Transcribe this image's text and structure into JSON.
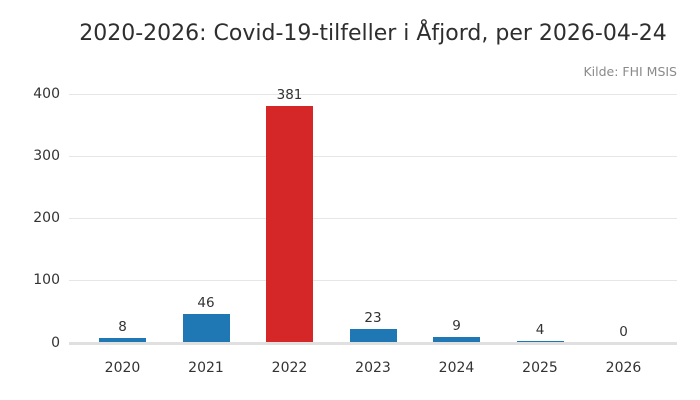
{
  "chart_data": {
    "type": "bar",
    "title": "2020-2026: Covid-19-tilfeller i Åfjord, per 2026-04-24",
    "source": "Kilde: FHI MSIS",
    "categories": [
      "2020",
      "2021",
      "2022",
      "2023",
      "2024",
      "2025",
      "2026"
    ],
    "values": [
      8,
      46,
      381,
      23,
      9,
      4,
      0
    ],
    "value_labels": [
      "8",
      "46",
      "381",
      "23",
      "9",
      "4",
      "0"
    ],
    "bar_colors": [
      "#1f77b4",
      "#1f77b4",
      "#d62728",
      "#1f77b4",
      "#1f77b4",
      "#1f77b4",
      "#1f77b4"
    ],
    "default_color": "#1f77b4",
    "highlight_color": "#d62728",
    "highlighted_category": "2022",
    "yticks": [
      0,
      100,
      200,
      300,
      400
    ],
    "ylim": [
      0,
      400
    ],
    "xlabel": "",
    "ylabel": "",
    "grid": true,
    "gridline_color": "#e6e6e6",
    "background_color": "#ffffff",
    "legend": "none"
  }
}
